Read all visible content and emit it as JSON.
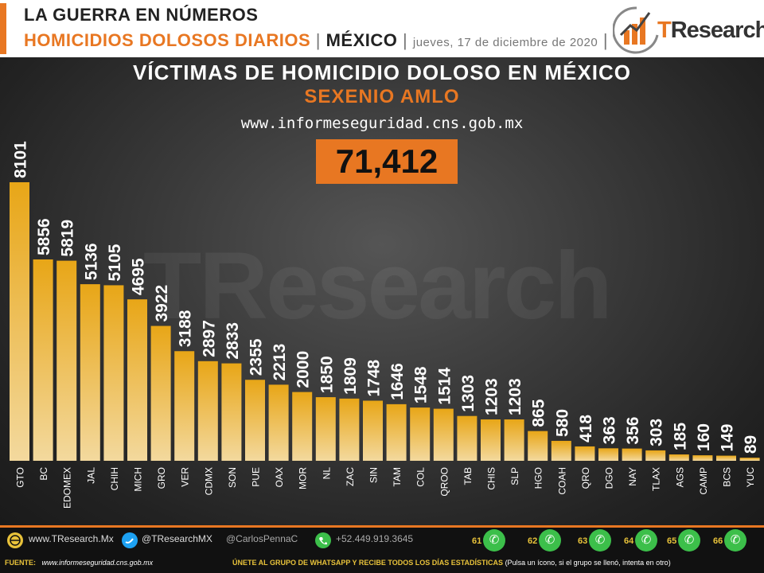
{
  "header": {
    "line1": "LA GUERRA EN NÚMEROS",
    "line2": "HOMICIDIOS DOLOSOS DIARIOS",
    "sep": "|",
    "country": "MÉXICO",
    "date": "jueves, 17 de diciembre  de 2020",
    "logo_t": "T",
    "logo_rest": "Research"
  },
  "chart_meta": {
    "watermark": "TResearch",
    "url": "www.informeseguridad.cns.gob.mx",
    "total": "71,412"
  },
  "chart_data": {
    "type": "bar",
    "title": "VÍCTIMAS DE HOMICIDIO DOLOSO EN MÉXICO",
    "subtitle": "SEXENIO AMLO",
    "categories": [
      "GTO",
      "BC",
      "EDOMEX",
      "JAL",
      "CHIH",
      "MICH",
      "GRO",
      "VER",
      "CDMX",
      "SON",
      "PUE",
      "OAX",
      "MOR",
      "NL",
      "ZAC",
      "SIN",
      "TAM",
      "COL",
      "QROO",
      "TAB",
      "CHIS",
      "SLP",
      "HGO",
      "COAH",
      "QRO",
      "DGO",
      "NAY",
      "TLAX",
      "AGS",
      "CAMP",
      "BCS",
      "YUC"
    ],
    "values": [
      8101,
      5856,
      5819,
      5136,
      5105,
      4695,
      3922,
      3188,
      2897,
      2833,
      2355,
      2213,
      2000,
      1850,
      1809,
      1748,
      1646,
      1548,
      1514,
      1303,
      1203,
      1203,
      865,
      580,
      418,
      363,
      356,
      303,
      185,
      160,
      149,
      89
    ],
    "ylim": [
      0,
      8101
    ],
    "colors": {
      "bar_top": "#e8a617",
      "bar_bottom": "#f3d99e",
      "label": "#ffffff"
    }
  },
  "footer": {
    "web": "www.TResearch.Mx",
    "twitter": "@TResearchMX",
    "handle": "@CarlosPennaC",
    "phone": "+52.449.919.3645",
    "src_label": "FUENTE:",
    "src_url": "www.informeseguridad.cns.gob.mx",
    "join": "ÚNETE  AL GRUPO  DE  WHATSAPP  Y RECIBE   TODOS  LOS  DÍAS ESTADÍSTICAS",
    "join_note": "(Pulsa un ícono, si el grupo se llenó, intenta en otro)",
    "groups": [
      "61",
      "62",
      "63",
      "64",
      "65",
      "66"
    ],
    "colors": {
      "accent": "#e87722",
      "whatsapp": "#3cbf4a"
    }
  }
}
